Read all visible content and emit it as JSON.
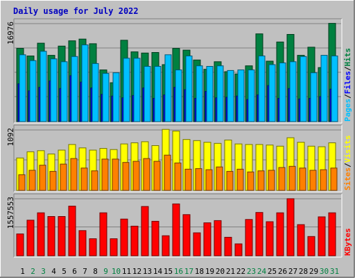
{
  "chart_data": {
    "type": "bar",
    "title": "Daily usage for July 2022",
    "categories": [
      "1",
      "2",
      "3",
      "4",
      "5",
      "6",
      "7",
      "8",
      "9",
      "10",
      "11",
      "12",
      "13",
      "14",
      "15",
      "16",
      "17",
      "18",
      "19",
      "20",
      "21",
      "22",
      "23",
      "24",
      "25",
      "26",
      "27",
      "28",
      "29",
      "30",
      "31"
    ],
    "weekend_days": [
      "2",
      "3",
      "9",
      "10",
      "16",
      "17",
      "23",
      "24",
      "30",
      "31"
    ],
    "panels": [
      {
        "name": "hits-files-pages",
        "ymax_label": "16976",
        "ymax": 16976,
        "legend": [
          {
            "text": "Pages",
            "color": "#00c0ff"
          },
          {
            "text": "/",
            "color": "#000000"
          },
          {
            "text": "Files",
            "color": "#0000ff"
          },
          {
            "text": "/",
            "color": "#000000"
          },
          {
            "text": "Hits",
            "color": "#008040"
          }
        ],
        "series": [
          {
            "name": "Hits",
            "color": "#008040",
            "values": [
              12600,
              11300,
              13500,
              11400,
              13000,
              13900,
              14200,
              13400,
              8900,
              6700,
              14000,
              12000,
              11800,
              11900,
              9800,
              12600,
              12300,
              10600,
              9000,
              10300,
              8600,
              8200,
              9600,
              15100,
              10400,
              13700,
              15000,
              11400,
              12800,
              9300,
              16900
            ]
          },
          {
            "name": "Files",
            "color": "#0000ff",
            "values": [
              6500,
              5300,
              5900,
              7000,
              5700,
              7900,
              6800,
              5800,
              4700,
              4400,
              4100,
              4500,
              5800,
              4000,
              4600,
              5900,
              5500,
              4000,
              5200,
              4100,
              4200,
              4400,
              3800,
              4600,
              6200,
              4000,
              5700,
              3900,
              4000,
              4300,
              5600
            ]
          },
          {
            "name": "Pages",
            "color": "#00c0ff",
            "values": [
              11500,
              10500,
              12100,
              10800,
              10300,
              11200,
              13200,
              10000,
              8300,
              8400,
              10900,
              10900,
              9500,
              9500,
              11500,
              8900,
              11300,
              9600,
              9500,
              9600,
              8800,
              8900,
              8900,
              11300,
              9800,
              10100,
              10300,
              11200,
              8400,
              11400,
              11300
            ]
          }
        ]
      },
      {
        "name": "visits-sites",
        "ymax_label": "1092",
        "ymax": 1092,
        "legend": [
          {
            "text": "Sites",
            "color": "#ff8000"
          },
          {
            "text": "/",
            "color": "#000000"
          },
          {
            "text": "Visits",
            "color": "#ffff00"
          }
        ],
        "series": [
          {
            "name": "Visits",
            "color": "#ffff00",
            "values": [
              580,
              690,
              710,
              650,
              720,
              820,
              760,
              720,
              750,
              730,
              830,
              850,
              870,
              800,
              1090,
              1060,
              910,
              890,
              860,
              840,
              900,
              830,
              820,
              820,
              810,
              790,
              940,
              860,
              790,
              780,
              850
            ]
          },
          {
            "name": "Sites",
            "color": "#ff8000",
            "values": [
              280,
              360,
              450,
              340,
              470,
              570,
              400,
              350,
              560,
              560,
              500,
              520,
              570,
              520,
              630,
              490,
              380,
              390,
              370,
              420,
              340,
              380,
              330,
              350,
              360,
              410,
              430,
              400,
              360,
              370,
              400
            ]
          }
        ]
      },
      {
        "name": "kbytes",
        "ymax_label": "1557553",
        "ymax": 1557553,
        "legend": [
          {
            "text": "KBytes",
            "color": "#ff0000"
          }
        ],
        "series": [
          {
            "name": "KBytes",
            "color": "#ff0000",
            "values": [
              590000,
              960000,
              1160000,
              1060000,
              1060000,
              1340000,
              680000,
              460000,
              1160000,
              460000,
              990000,
              800000,
              1330000,
              930000,
              540000,
              1400000,
              1110000,
              620000,
              890000,
              950000,
              500000,
              320000,
              980000,
              1170000,
              920000,
              1160000,
              1540000,
              840000,
              520000,
              1050000,
              1160000
            ]
          }
        ]
      }
    ]
  }
}
